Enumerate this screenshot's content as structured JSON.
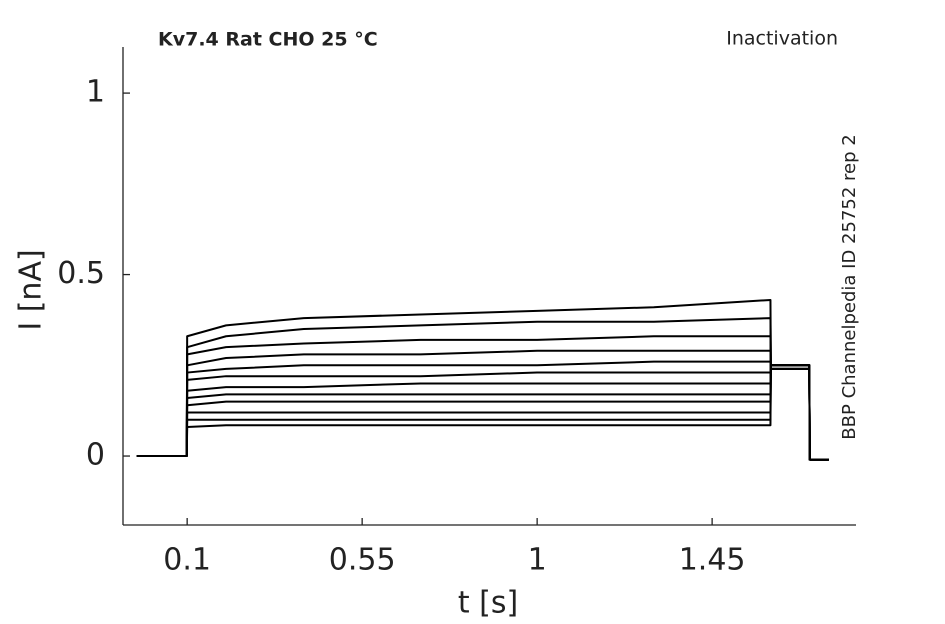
{
  "chart_data": {
    "type": "line",
    "title": "Kv7.4  Rat  CHO  25 °C",
    "subtitle": "Inactivation",
    "annotation": "BBP Channelpedia ID 25752 rep 2",
    "xlabel": "t [s]",
    "ylabel": "I [nA]",
    "xlim": [
      -0.065,
      1.82
    ],
    "ylim": [
      -0.19,
      1.127
    ],
    "xticks": [
      0.1,
      0.55,
      1,
      1.45
    ],
    "yticks": [
      0,
      0.5,
      1
    ],
    "x": [
      -0.03,
      0.099,
      0.1,
      0.2,
      0.4,
      0.7,
      1.0,
      1.3,
      1.6,
      1.601,
      1.7,
      1.701,
      1.75
    ],
    "series": [
      {
        "color": "#000000",
        "values": [
          0,
          0,
          0.33,
          0.36,
          0.38,
          0.39,
          0.4,
          0.41,
          0.43,
          0.25,
          0.25,
          -0.01,
          -0.01
        ]
      },
      {
        "color": "#000000",
        "values": [
          0,
          0,
          0.3,
          0.33,
          0.35,
          0.36,
          0.37,
          0.37,
          0.38,
          0.25,
          0.25,
          -0.01,
          -0.01
        ]
      },
      {
        "color": "#000000",
        "values": [
          0,
          0,
          0.28,
          0.3,
          0.31,
          0.32,
          0.32,
          0.33,
          0.33,
          0.25,
          0.25,
          -0.01,
          -0.01
        ]
      },
      {
        "color": "#000000",
        "values": [
          0,
          0,
          0.25,
          0.27,
          0.28,
          0.28,
          0.29,
          0.29,
          0.29,
          0.24,
          0.24,
          -0.01,
          -0.01
        ]
      },
      {
        "color": "#000000",
        "values": [
          0,
          0,
          0.23,
          0.24,
          0.25,
          0.25,
          0.25,
          0.26,
          0.26,
          0.24,
          0.24,
          -0.01,
          -0.01
        ]
      },
      {
        "color": "#000000",
        "values": [
          0,
          0,
          0.21,
          0.22,
          0.22,
          0.22,
          0.23,
          0.23,
          0.23,
          0.24,
          0.24,
          -0.01,
          -0.01
        ]
      },
      {
        "color": "#000000",
        "values": [
          0,
          0,
          0.18,
          0.19,
          0.19,
          0.2,
          0.2,
          0.2,
          0.2,
          0.24,
          0.24,
          -0.01,
          -0.01
        ]
      },
      {
        "color": "#000000",
        "values": [
          0,
          0,
          0.16,
          0.17,
          0.17,
          0.17,
          0.17,
          0.17,
          0.17,
          0.25,
          0.25,
          -0.01,
          -0.01
        ]
      },
      {
        "color": "#000000",
        "values": [
          0,
          0,
          0.14,
          0.15,
          0.15,
          0.15,
          0.15,
          0.15,
          0.15,
          0.25,
          0.25,
          -0.01,
          -0.01
        ]
      },
      {
        "color": "#000000",
        "values": [
          0,
          0,
          0.12,
          0.12,
          0.12,
          0.12,
          0.12,
          0.12,
          0.12,
          0.25,
          0.25,
          -0.01,
          -0.01
        ]
      },
      {
        "color": "#000000",
        "values": [
          0,
          0,
          0.1,
          0.1,
          0.1,
          0.1,
          0.1,
          0.1,
          0.1,
          0.25,
          0.25,
          -0.01,
          -0.01
        ]
      },
      {
        "color": "#000000",
        "values": [
          0,
          0,
          0.08,
          0.085,
          0.085,
          0.085,
          0.085,
          0.085,
          0.085,
          0.25,
          0.25,
          -0.01,
          -0.01
        ]
      }
    ]
  }
}
